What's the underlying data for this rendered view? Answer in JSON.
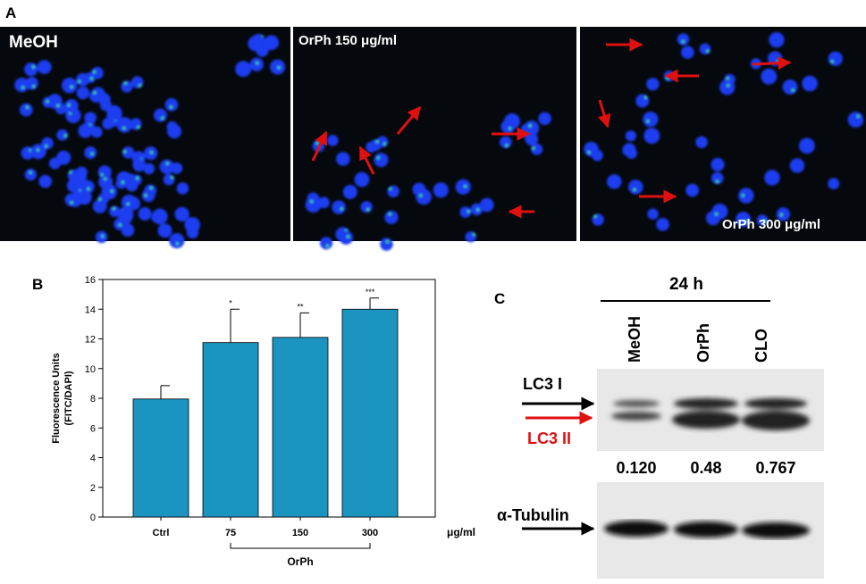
{
  "panel_a": {
    "label": "A",
    "images": [
      {
        "label": "MeOH"
      },
      {
        "label": "OrPh 150 μg/ml"
      },
      {
        "label": "OrPh 300 μg/ml"
      }
    ]
  },
  "panel_b": {
    "label": "B"
  },
  "chart_data": {
    "type": "bar",
    "y_label": [
      "Fluorescence Units",
      "(FITC/DAPI)"
    ],
    "categories": [
      "Ctrl",
      "75",
      "150",
      "300"
    ],
    "values": [
      7.95,
      11.75,
      12.1,
      14.0
    ],
    "errors": [
      0.9,
      2.25,
      1.65,
      0.75
    ],
    "significance": [
      null,
      "*",
      "**",
      "***"
    ],
    "x_unit": "μg/ml",
    "group_label": "OrPh",
    "color": "#1b95c0",
    "ylim": [
      0,
      16
    ],
    "yticks": [
      0,
      2,
      4,
      6,
      8,
      10,
      12,
      14,
      16
    ]
  },
  "panel_c": {
    "label": "C",
    "time": "24 h",
    "lanes": [
      "MeOH",
      "OrPh",
      "CLO"
    ],
    "band_labels": {
      "lc3_i": "LC3 I",
      "lc3_ii": "LC3 II",
      "tubulin": "α-Tubulin"
    },
    "ratios": [
      "0.120",
      "0.48",
      "0.767"
    ]
  }
}
